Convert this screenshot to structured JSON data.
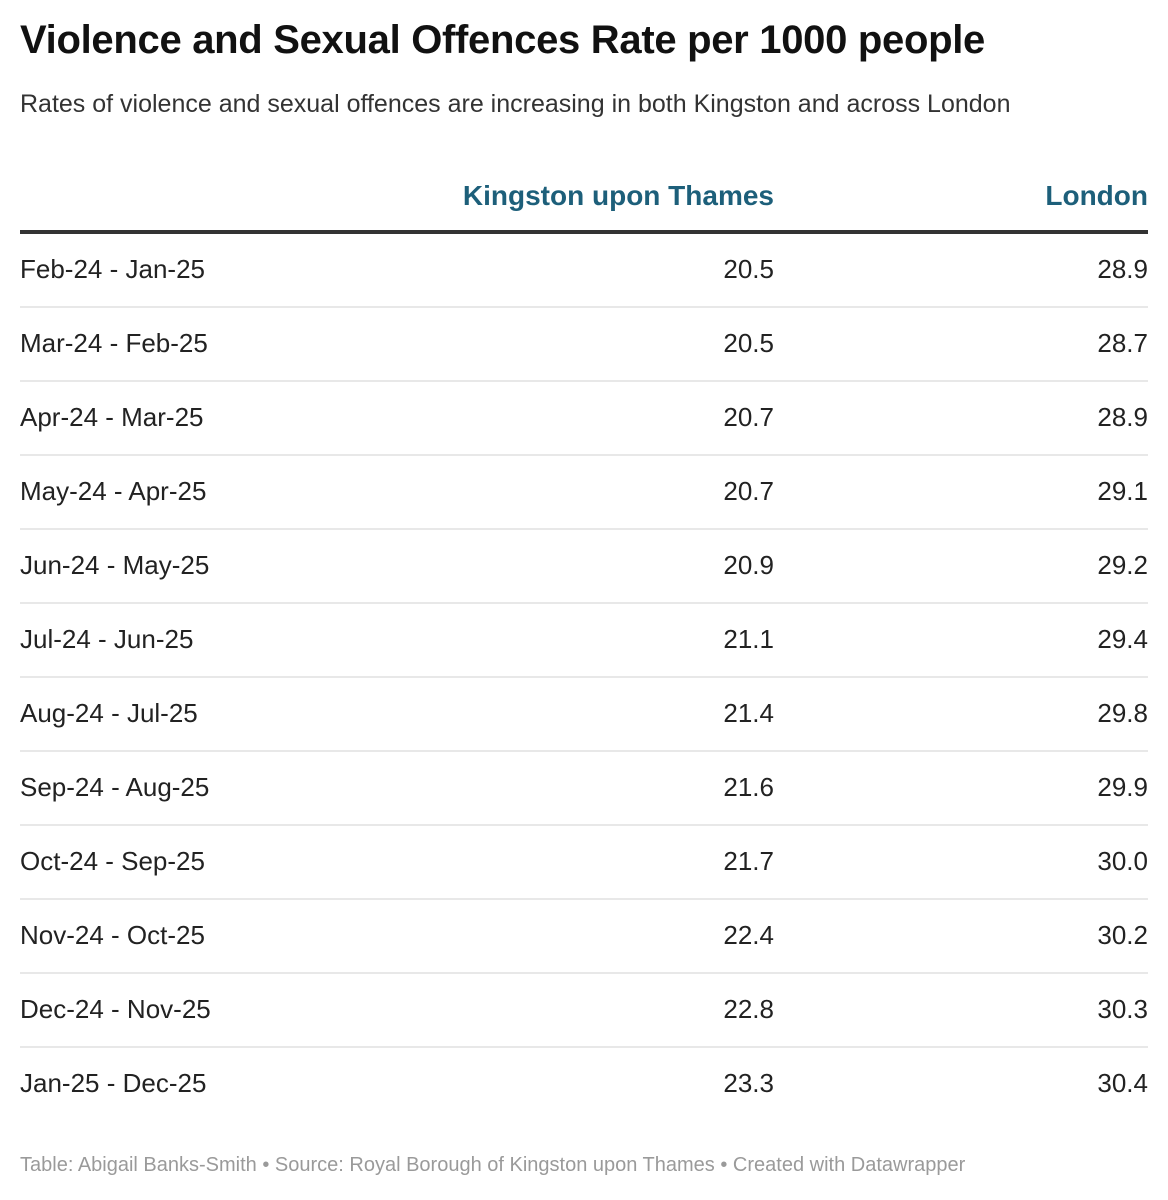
{
  "header": {
    "title": "Violence and Sexual Offences Rate per 1000 people",
    "subtitle": "Rates of violence and sexual offences are increasing in both Kingston and across London"
  },
  "colors": {
    "header_text": "#1d5f7a",
    "rule": "#333333",
    "divider": "#e8e8e8",
    "footer_text": "#9a9a9a"
  },
  "footer": {
    "text": "Table: Abigail Banks-Smith • Source: Royal Borough of Kingston upon Thames • Created with Datawrapper"
  },
  "chart_data": {
    "type": "table",
    "title": "Violence and Sexual Offences Rate per 1000 people",
    "subtitle": "Rates of violence and sexual offences are increasing in both Kingston and across London",
    "columns": [
      "",
      "Kingston upon Thames",
      "London"
    ],
    "categories": [
      "Feb-24 - Jan-25",
      "Mar-24 - Feb-25",
      "Apr-24 - Mar-25",
      "May-24 - Apr-25",
      "Jun-24 - May-25",
      "Jul-24 - Jun-25",
      "Aug-24 - Jul-25",
      "Sep-24 - Aug-25",
      "Oct-24 - Sep-25",
      "Nov-24 - Oct-25",
      "Dec-24 - Nov-25",
      "Jan-25 - Dec-25"
    ],
    "series": [
      {
        "name": "Kingston upon Thames",
        "values": [
          "20.5",
          "20.5",
          "20.7",
          "20.7",
          "20.9",
          "21.1",
          "21.4",
          "21.6",
          "21.7",
          "22.4",
          "22.8",
          "23.3"
        ]
      },
      {
        "name": "London",
        "values": [
          "28.9",
          "28.7",
          "28.9",
          "29.1",
          "29.2",
          "29.4",
          "29.8",
          "29.9",
          "30.0",
          "30.2",
          "30.3",
          "30.4"
        ]
      }
    ],
    "footer": "Table: Abigail Banks-Smith • Source: Royal Borough of Kingston upon Thames • Created with Datawrapper"
  }
}
